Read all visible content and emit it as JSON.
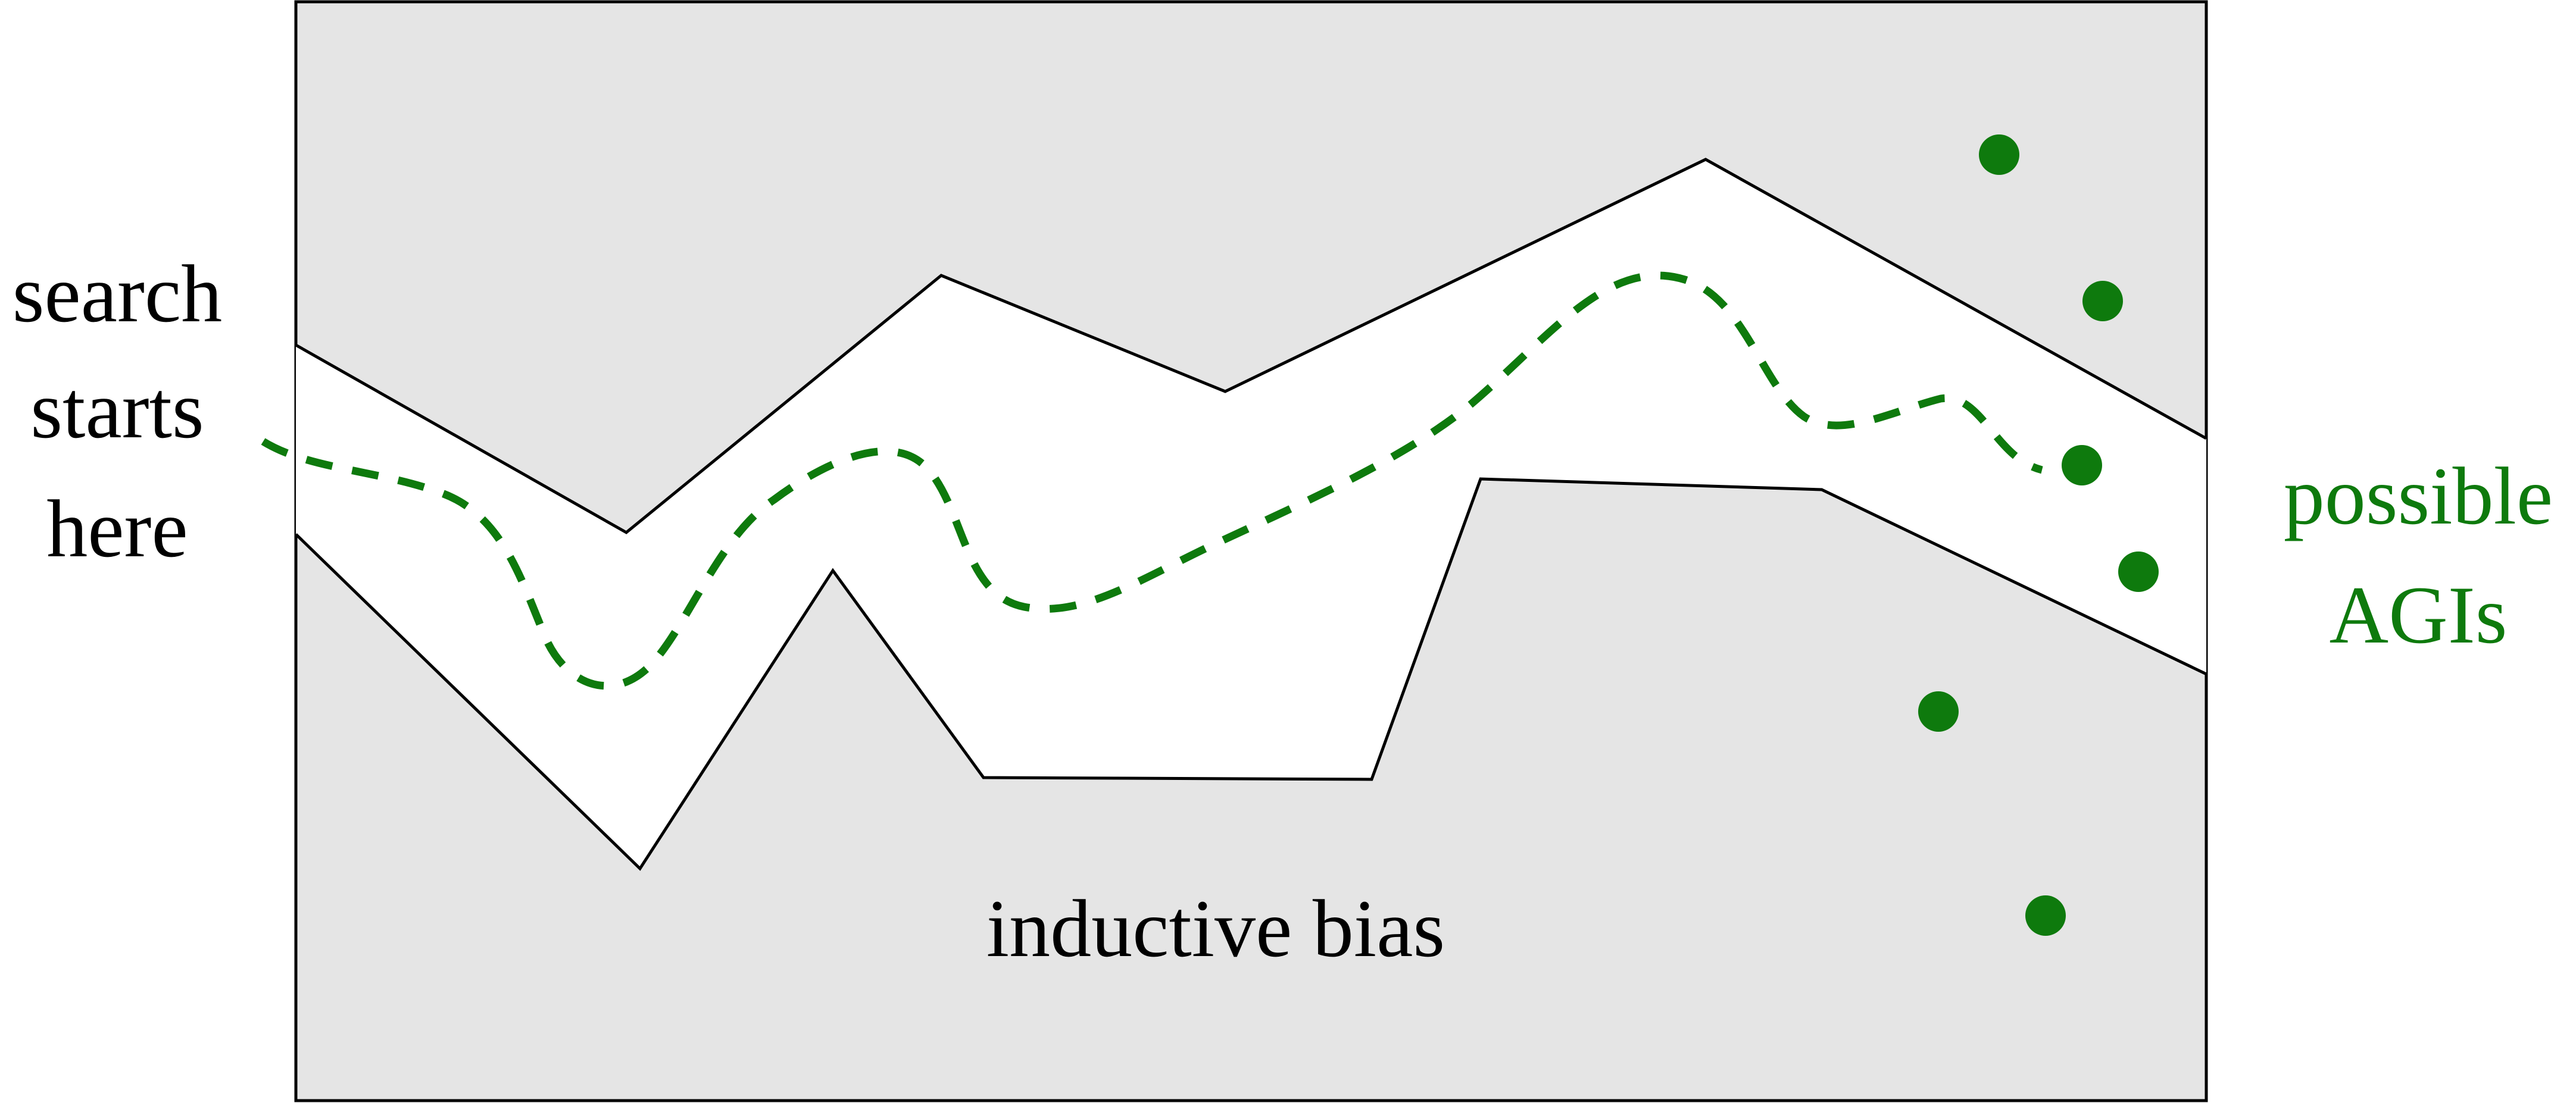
{
  "labels": {
    "start_line1": "search",
    "start_line2": "starts",
    "start_line3": "here",
    "goal_line1": "possible",
    "goal_line2": "AGIs",
    "region": "inductive bias"
  },
  "colors": {
    "region_fill": "#e5e5e5",
    "outline": "#000000",
    "path": "#0e7a0d",
    "dots": "#0e7a0d",
    "goal_text": "#0e7a0d",
    "text": "#000000",
    "background": "#ffffff"
  },
  "path_style": "dashed",
  "goal_markers": 6
}
